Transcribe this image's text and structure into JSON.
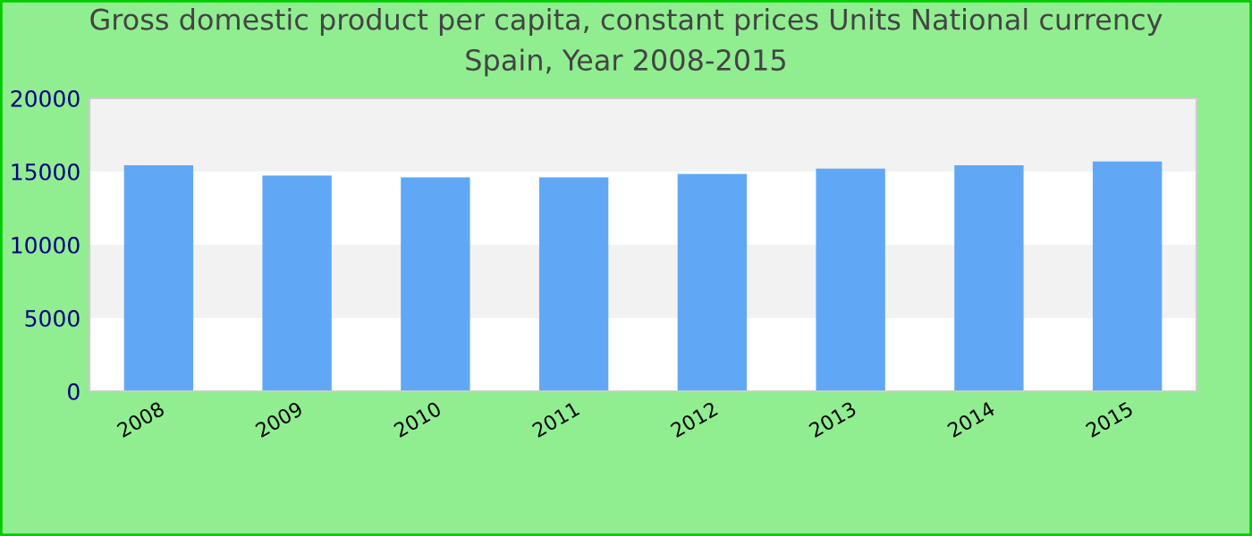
{
  "chart_data": {
    "type": "bar",
    "title": "Gross domestic product per capita, constant prices Units National currency\nSpain, Year 2008-2015",
    "categories": [
      "2008",
      "2009",
      "2010",
      "2011",
      "2012",
      "2013",
      "2014",
      "2015"
    ],
    "values": [
      15420,
      14720,
      14610,
      14610,
      14830,
      15200,
      15420,
      15690
    ],
    "color": "#60a8f5",
    "ylim": [
      0,
      20000
    ],
    "yticks": [
      0,
      5000,
      10000,
      15000,
      20000
    ],
    "bands": [
      {
        "axis": "y",
        "from": 5000,
        "to": 10000,
        "color": "#f2f2f2"
      },
      {
        "axis": "y",
        "from": 15000,
        "to": 20000,
        "color": "#f2f2f2"
      }
    ]
  }
}
